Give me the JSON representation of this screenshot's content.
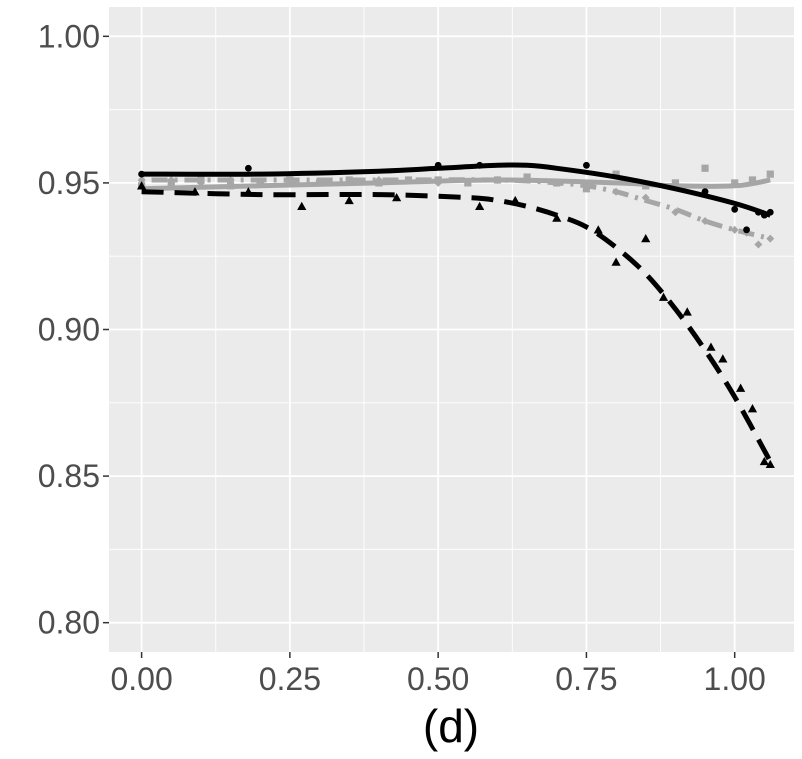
{
  "chart_data": {
    "type": "line",
    "title": "",
    "xlabel": "(d)",
    "ylabel": "",
    "xlim": [
      -0.055,
      1.1
    ],
    "ylim": [
      0.79,
      1.01
    ],
    "x_ticks": [
      0.0,
      0.25,
      0.5,
      0.75,
      1.0
    ],
    "x_tick_labels": [
      "0.00",
      "0.25",
      "0.50",
      "0.75",
      "1.00"
    ],
    "y_ticks": [
      0.8,
      0.85,
      0.9,
      0.95,
      1.0
    ],
    "y_tick_labels": [
      "0.80",
      "0.85",
      "0.90",
      "0.95",
      "1.00"
    ],
    "grid": true,
    "colors": {
      "panel": "#ebebeb",
      "grid": "#ffffff",
      "black": "#000000",
      "gray": "#a6a6a6"
    },
    "series": [
      {
        "name": "black-solid-circles",
        "color": "#000000",
        "line": "solid",
        "marker": "circle",
        "points_x": [
          0.0,
          0.18,
          0.5,
          0.57,
          0.75,
          0.95,
          1.0,
          1.02,
          1.04,
          1.05,
          1.06
        ],
        "points_y": [
          0.953,
          0.955,
          0.956,
          0.956,
          0.956,
          0.947,
          0.941,
          0.934,
          0.94,
          0.939,
          0.94
        ],
        "curve_x": [
          0.0,
          0.2,
          0.4,
          0.5,
          0.6,
          0.65,
          0.7,
          0.8,
          0.9,
          1.0,
          1.06
        ],
        "curve_y": [
          0.953,
          0.953,
          0.954,
          0.955,
          0.956,
          0.956,
          0.955,
          0.952,
          0.948,
          0.943,
          0.939
        ]
      },
      {
        "name": "black-dashed-triangles",
        "color": "#000000",
        "line": "dashed",
        "marker": "triangle",
        "points_x": [
          0.0,
          0.09,
          0.18,
          0.27,
          0.35,
          0.43,
          0.57,
          0.63,
          0.7,
          0.77,
          0.8,
          0.85,
          0.88,
          0.92,
          0.96,
          0.98,
          1.01,
          1.03,
          1.05,
          1.06
        ],
        "points_y": [
          0.949,
          0.947,
          0.947,
          0.942,
          0.944,
          0.945,
          0.942,
          0.944,
          0.938,
          0.934,
          0.923,
          0.931,
          0.911,
          0.906,
          0.894,
          0.89,
          0.88,
          0.873,
          0.855,
          0.854
        ],
        "curve_x": [
          0.0,
          0.2,
          0.4,
          0.55,
          0.6,
          0.65,
          0.7,
          0.75,
          0.8,
          0.85,
          0.9,
          0.95,
          1.0,
          1.06
        ],
        "curve_y": [
          0.947,
          0.946,
          0.946,
          0.945,
          0.944,
          0.942,
          0.939,
          0.935,
          0.928,
          0.919,
          0.907,
          0.893,
          0.877,
          0.855
        ]
      },
      {
        "name": "gray-solid-squares",
        "color": "#a6a6a6",
        "line": "solid",
        "marker": "square",
        "points_x": [
          0.0,
          0.05,
          0.1,
          0.15,
          0.2,
          0.25,
          0.3,
          0.35,
          0.4,
          0.45,
          0.5,
          0.55,
          0.6,
          0.65,
          0.7,
          0.75,
          0.8,
          0.85,
          0.9,
          0.95,
          1.0,
          1.03,
          1.06
        ],
        "points_y": [
          0.949,
          0.95,
          0.951,
          0.949,
          0.95,
          0.951,
          0.95,
          0.951,
          0.95,
          0.951,
          0.951,
          0.95,
          0.951,
          0.952,
          0.95,
          0.948,
          0.953,
          0.949,
          0.95,
          0.955,
          0.95,
          0.951,
          0.953
        ],
        "curve_x": [
          0.0,
          0.2,
          0.4,
          0.6,
          0.8,
          0.9,
          1.0,
          1.06
        ],
        "curve_y": [
          0.948,
          0.949,
          0.95,
          0.951,
          0.95,
          0.949,
          0.949,
          0.951
        ]
      },
      {
        "name": "gray-dotdash-diamonds",
        "color": "#a6a6a6",
        "line": "dotdash",
        "marker": "diamond",
        "points_x": [
          0.0,
          0.05,
          0.1,
          0.15,
          0.2,
          0.25,
          0.3,
          0.4,
          0.5,
          0.6,
          0.7,
          0.8,
          0.85,
          0.9,
          0.95,
          1.0,
          1.02,
          1.04,
          1.06
        ],
        "points_y": [
          0.951,
          0.951,
          0.95,
          0.951,
          0.95,
          0.951,
          0.95,
          0.951,
          0.95,
          0.951,
          0.95,
          0.947,
          0.945,
          0.94,
          0.937,
          0.934,
          0.933,
          0.929,
          0.931
        ],
        "curve_x": [
          0.0,
          0.2,
          0.4,
          0.6,
          0.7,
          0.75,
          0.8,
          0.85,
          0.9,
          0.95,
          1.0,
          1.06
        ],
        "curve_y": [
          0.951,
          0.951,
          0.951,
          0.951,
          0.95,
          0.949,
          0.947,
          0.944,
          0.941,
          0.937,
          0.934,
          0.931
        ]
      }
    ]
  }
}
